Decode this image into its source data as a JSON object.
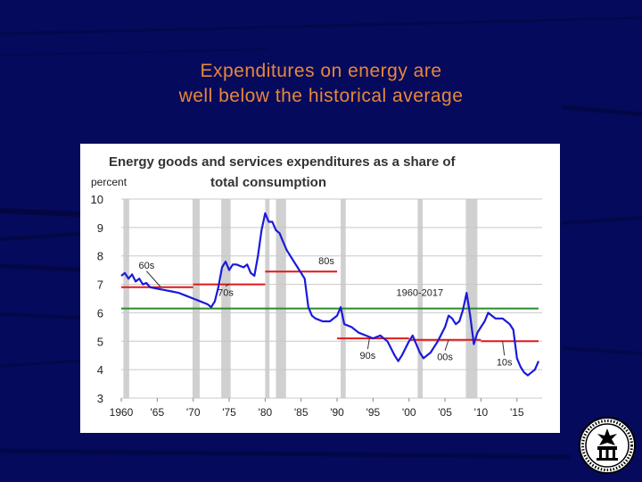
{
  "slide": {
    "title_line1": "Expenditures on energy are",
    "title_line2": "well below the historical average"
  },
  "colors": {
    "background": "#050a5c",
    "title": "#e8873a",
    "series_line": "#1a1adb",
    "decade_average": "#e01818",
    "overall_average": "#2e8b2e",
    "recession_band": "#d0d0d0"
  },
  "seal": {
    "icon": "federal-reserve-seal-icon"
  },
  "chart_data": {
    "type": "line",
    "title": "Energy goods and services expenditures as a share of total consumption",
    "title_line1": "Energy goods and services expenditures as a share of",
    "title_line2": "total consumption",
    "ylabel": "percent",
    "xlim": [
      1960,
      2018.5
    ],
    "ylim": [
      3,
      10
    ],
    "y_ticks": [
      3,
      4,
      5,
      6,
      7,
      8,
      9,
      10
    ],
    "x_ticks": [
      {
        "value": 1960,
        "label": "1960"
      },
      {
        "value": 1965,
        "label": "'65"
      },
      {
        "value": 1970,
        "label": "'70"
      },
      {
        "value": 1975,
        "label": "'75"
      },
      {
        "value": 1980,
        "label": "'80"
      },
      {
        "value": 1985,
        "label": "'85"
      },
      {
        "value": 1990,
        "label": "'90"
      },
      {
        "value": 1995,
        "label": "'95"
      },
      {
        "value": 2000,
        "label": "'00"
      },
      {
        "value": 2005,
        "label": "'05"
      },
      {
        "value": 2010,
        "label": "'10"
      },
      {
        "value": 2015,
        "label": "'15"
      }
    ],
    "grid": true,
    "recessions": [
      [
        1960.3,
        1961.1
      ],
      [
        1969.9,
        1970.9
      ],
      [
        1973.9,
        1975.2
      ],
      [
        1980.0,
        1980.6
      ],
      [
        1981.5,
        1982.9
      ],
      [
        1990.5,
        1991.2
      ],
      [
        2001.2,
        2001.9
      ],
      [
        2007.9,
        2009.5
      ]
    ],
    "series": [
      {
        "x": [
          1960,
          1960.5,
          1961,
          1961.5,
          1962,
          1962.5,
          1963,
          1963.5,
          1964,
          1965,
          1966,
          1967,
          1968,
          1969,
          1970,
          1971,
          1972,
          1972.5,
          1973,
          1973.5,
          1974,
          1974.5,
          1975,
          1975.5,
          1976,
          1977,
          1977.5,
          1978,
          1978.5,
          1979,
          1979.5,
          1980,
          1980.5,
          1981,
          1981.5,
          1982,
          1982.5,
          1983,
          1983.5,
          1984,
          1984.5,
          1985,
          1985.5,
          1986,
          1986.5,
          1987,
          1988,
          1989,
          1990,
          1990.5,
          1991,
          1992,
          1993,
          1994,
          1995,
          1996,
          1997,
          1998,
          1998.5,
          1999,
          2000,
          2000.5,
          2001,
          2001.5,
          2002,
          2003,
          2004,
          2005,
          2005.5,
          2006,
          2006.5,
          2007,
          2007.5,
          2008,
          2008.5,
          2009,
          2009.5,
          2010,
          2010.5,
          2011,
          2011.5,
          2012,
          2012.5,
          2013,
          2013.5,
          2014,
          2014.5,
          2015,
          2015.5,
          2016,
          2016.5,
          2017,
          2017.5,
          2018
        ],
        "values": [
          7.3,
          7.4,
          7.2,
          7.35,
          7.1,
          7.2,
          7.0,
          7.05,
          6.9,
          6.85,
          6.8,
          6.75,
          6.7,
          6.6,
          6.5,
          6.4,
          6.3,
          6.2,
          6.4,
          6.9,
          7.6,
          7.8,
          7.5,
          7.7,
          7.7,
          7.6,
          7.7,
          7.4,
          7.3,
          8.0,
          8.9,
          9.5,
          9.2,
          9.2,
          8.9,
          8.8,
          8.5,
          8.2,
          8.0,
          7.8,
          7.6,
          7.4,
          7.2,
          6.2,
          5.9,
          5.8,
          5.7,
          5.7,
          5.9,
          6.2,
          5.6,
          5.5,
          5.3,
          5.2,
          5.1,
          5.2,
          5.0,
          4.5,
          4.3,
          4.5,
          5.0,
          5.2,
          4.9,
          4.6,
          4.4,
          4.6,
          5.0,
          5.5,
          5.9,
          5.8,
          5.6,
          5.7,
          6.1,
          6.7,
          5.9,
          4.9,
          5.3,
          5.5,
          5.7,
          6.0,
          5.9,
          5.8,
          5.8,
          5.8,
          5.7,
          5.6,
          5.4,
          4.4,
          4.1,
          3.9,
          3.8,
          3.9,
          4.0,
          4.3
        ]
      }
    ],
    "decade_averages": [
      {
        "label": "60s",
        "start": 1960,
        "end": 1970,
        "value": 6.9
      },
      {
        "label": "70s",
        "start": 1970,
        "end": 1980,
        "value": 7.0
      },
      {
        "label": "80s",
        "start": 1980,
        "end": 1990,
        "value": 7.45
      },
      {
        "label": "90s",
        "start": 1990,
        "end": 2000,
        "value": 5.1
      },
      {
        "label": "00s",
        "start": 2000,
        "end": 2010,
        "value": 5.05
      },
      {
        "label": "10s",
        "start": 2010,
        "end": 2018,
        "value": 5.0
      }
    ],
    "overall_average": {
      "label": "1960-2017",
      "start": 1960,
      "end": 2018,
      "value": 6.15
    }
  }
}
